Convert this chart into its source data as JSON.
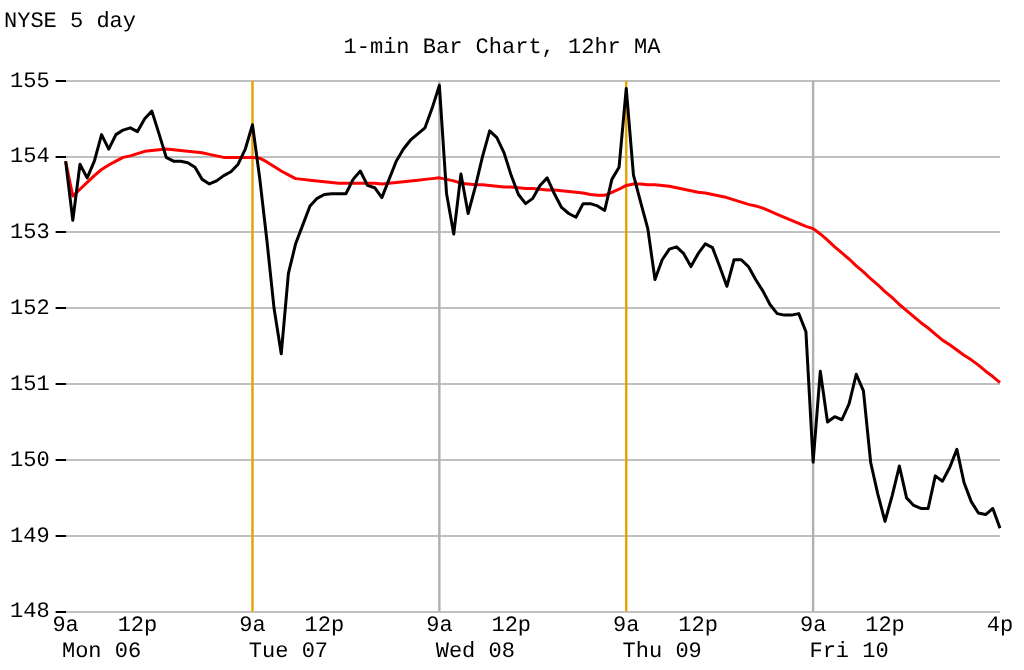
{
  "chart_data": {
    "type": "line",
    "title": "NYSE 5 day",
    "subtitle": "1-min Bar Chart, 12hr MA",
    "categories": [
      "9a",
      null,
      null,
      null,
      null,
      null,
      null,
      null,
      null,
      null,
      "12p",
      null,
      null,
      null,
      null,
      null,
      null,
      null,
      null,
      null,
      null,
      null,
      null,
      null,
      null,
      null,
      "9a",
      null,
      null,
      null,
      null,
      null,
      null,
      null,
      null,
      null,
      "12p",
      null,
      null,
      null,
      null,
      null,
      null,
      null,
      null,
      null,
      null,
      null,
      null,
      null,
      null,
      null,
      "9a",
      null,
      null,
      null,
      null,
      null,
      null,
      null,
      null,
      null,
      "12p",
      null,
      null,
      null,
      null,
      null,
      null,
      null,
      null,
      null,
      null,
      null,
      null,
      null,
      null,
      null,
      "9a",
      null,
      null,
      null,
      null,
      null,
      null,
      null,
      null,
      null,
      "12p",
      null,
      null,
      null,
      null,
      null,
      null,
      null,
      null,
      null,
      null,
      null,
      null,
      null,
      null,
      null,
      "9a",
      null,
      null,
      null,
      null,
      null,
      null,
      null,
      null,
      null,
      "12p",
      null,
      null,
      null,
      null,
      null,
      null,
      null,
      null,
      null,
      null,
      null,
      null,
      null,
      null,
      null,
      "4p"
    ],
    "series": [
      {
        "color": "#000000",
        "values": [
          153.94,
          153.16,
          153.9,
          153.72,
          153.94,
          154.29,
          154.1,
          154.29,
          154.35,
          154.38,
          154.33,
          154.5,
          154.6,
          154.3,
          153.99,
          153.94,
          153.94,
          153.92,
          153.86,
          153.7,
          153.64,
          153.68,
          153.75,
          153.8,
          153.9,
          154.1,
          154.42,
          153.72,
          152.9,
          152.0,
          151.4,
          152.46,
          152.85,
          153.1,
          153.35,
          153.45,
          153.5,
          153.51,
          153.51,
          153.51,
          153.7,
          153.81,
          153.62,
          153.59,
          153.46,
          153.7,
          153.94,
          154.1,
          154.22,
          154.3,
          154.38,
          154.64,
          154.94,
          153.51,
          152.98,
          153.77,
          153.25,
          153.6,
          154.0,
          154.34,
          154.25,
          154.05,
          153.75,
          153.5,
          153.38,
          153.45,
          153.62,
          153.72,
          153.51,
          153.33,
          153.25,
          153.2,
          153.38,
          153.38,
          153.35,
          153.29,
          153.7,
          153.86,
          154.9,
          153.76,
          153.4,
          153.05,
          152.38,
          152.64,
          152.78,
          152.81,
          152.72,
          152.55,
          152.72,
          152.85,
          152.8,
          152.55,
          152.29,
          152.64,
          152.64,
          152.55,
          152.38,
          152.23,
          152.05,
          151.93,
          151.91,
          151.91,
          151.93,
          151.69,
          149.97,
          151.17,
          150.5,
          150.57,
          150.53,
          150.74,
          151.13,
          150.91,
          149.97,
          149.55,
          149.19,
          149.53,
          149.92,
          149.5,
          149.4,
          149.36,
          149.36,
          149.79,
          149.72,
          149.9,
          150.14,
          149.7,
          149.45,
          149.3,
          149.28,
          149.36,
          149.1
        ]
      },
      {
        "color": "#ff0000",
        "values": [
          153.94,
          153.48,
          153.57,
          153.66,
          153.75,
          153.83,
          153.89,
          153.94,
          153.99,
          154.01,
          154.04,
          154.07,
          154.08,
          154.09,
          154.1,
          154.09,
          154.08,
          154.07,
          154.06,
          154.05,
          154.03,
          154.01,
          153.99,
          153.99,
          153.99,
          153.99,
          153.99,
          153.98,
          153.93,
          153.87,
          153.81,
          153.76,
          153.71,
          153.7,
          153.69,
          153.68,
          153.67,
          153.66,
          153.65,
          153.65,
          153.65,
          153.65,
          153.65,
          153.65,
          153.64,
          153.65,
          153.66,
          153.67,
          153.68,
          153.69,
          153.7,
          153.71,
          153.72,
          153.7,
          153.68,
          153.65,
          153.64,
          153.63,
          153.63,
          153.62,
          153.61,
          153.6,
          153.6,
          153.59,
          153.58,
          153.58,
          153.57,
          153.56,
          153.56,
          153.55,
          153.54,
          153.53,
          153.52,
          153.5,
          153.49,
          153.49,
          153.53,
          153.57,
          153.62,
          153.64,
          153.64,
          153.63,
          153.63,
          153.62,
          153.61,
          153.59,
          153.57,
          153.55,
          153.53,
          153.52,
          153.5,
          153.48,
          153.46,
          153.43,
          153.4,
          153.37,
          153.35,
          153.32,
          153.28,
          153.24,
          153.2,
          153.16,
          153.12,
          153.08,
          153.05,
          152.98,
          152.9,
          152.81,
          152.73,
          152.65,
          152.56,
          152.48,
          152.39,
          152.31,
          152.22,
          152.14,
          152.05,
          151.97,
          151.89,
          151.81,
          151.74,
          151.66,
          151.58,
          151.52,
          151.45,
          151.38,
          151.32,
          151.25,
          151.17,
          151.1,
          151.02
        ]
      }
    ],
    "annotations": [
      "Mon 06",
      "Tue 07",
      "Wed 08",
      "Thu 09",
      "Fri 10"
    ],
    "ylim": [
      148,
      155
    ],
    "yticks": [
      148,
      149,
      150,
      151,
      152,
      153,
      154,
      155
    ],
    "grid": "y",
    "legend": false,
    "marker": "none",
    "line_style": "solid"
  }
}
